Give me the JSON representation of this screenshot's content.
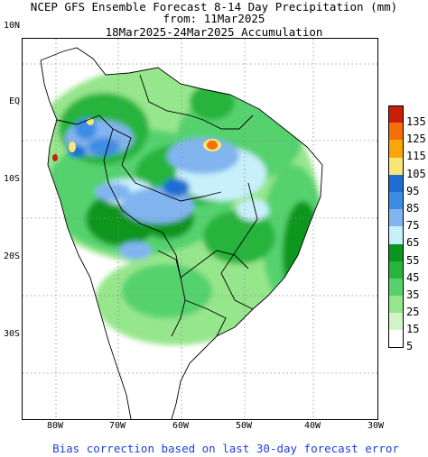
{
  "title": {
    "line1": "NCEP GFS Ensemble Forecast 8-14 Day Precipitation (mm)",
    "line2": "from: 11Mar2025",
    "line3": "18Mar2025-24Mar2025 Accumulation"
  },
  "lat_labels": [
    "10N",
    "EQ",
    "10S",
    "20S",
    "30S"
  ],
  "lon_labels": [
    "80W",
    "70W",
    "60W",
    "50W",
    "40W",
    "30W"
  ],
  "legend": {
    "items": [
      {
        "label": "135",
        "color": "#c81e0a"
      },
      {
        "label": "125",
        "color": "#f56e0a"
      },
      {
        "label": "115",
        "color": "#faa50a"
      },
      {
        "label": "105",
        "color": "#fae678"
      },
      {
        "label": "95",
        "color": "#1e6ed2"
      },
      {
        "label": "85",
        "color": "#3c8ce6"
      },
      {
        "label": "75",
        "color": "#82b4f0"
      },
      {
        "label": "65",
        "color": "#c8f0fa"
      },
      {
        "label": "55",
        "color": "#0a961e"
      },
      {
        "label": "45",
        "color": "#28b43c"
      },
      {
        "label": "35",
        "color": "#55d26e"
      },
      {
        "label": "25",
        "color": "#96e68c"
      },
      {
        "label": "15",
        "color": "#d2f5c8"
      },
      {
        "label": "5",
        "color": "#ffffff"
      }
    ]
  },
  "footer": "Bias correction based on last 30-day forecast error"
}
